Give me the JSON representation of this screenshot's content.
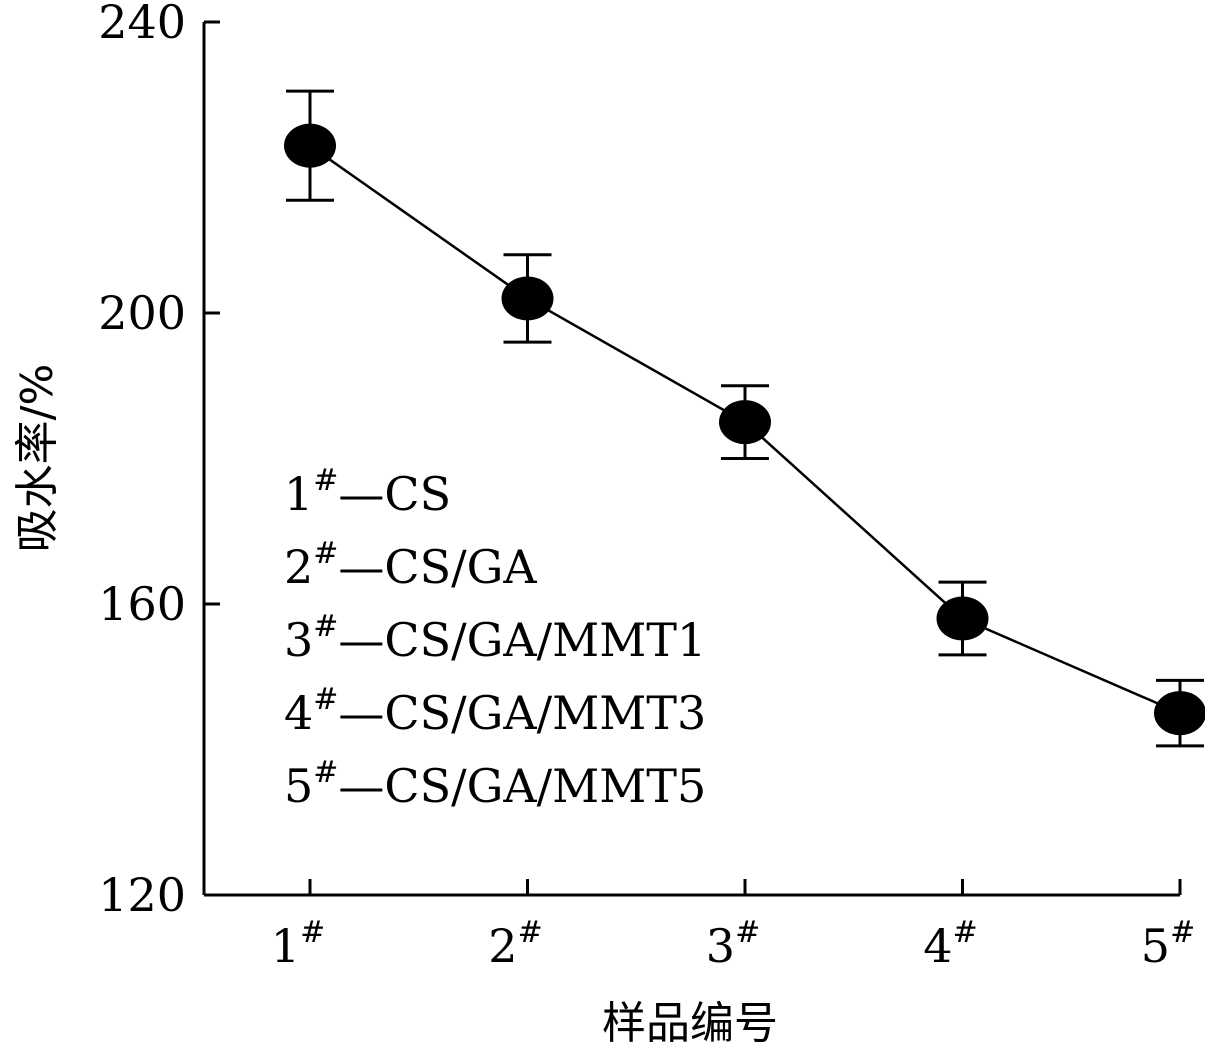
{
  "chart_data": {
    "type": "line",
    "xlabel": "样品编号",
    "ylabel": "吸水率/%",
    "ylim": [
      120,
      240
    ],
    "yticks": [
      120,
      160,
      200,
      240
    ],
    "categories": [
      {
        "num": "1",
        "sup": "#"
      },
      {
        "num": "2",
        "sup": "#"
      },
      {
        "num": "3",
        "sup": "#"
      },
      {
        "num": "4",
        "sup": "#"
      },
      {
        "num": "5",
        "sup": "#"
      }
    ],
    "series": [
      {
        "values": [
          223,
          202,
          185,
          158,
          145
        ],
        "errors": [
          7.5,
          6,
          5,
          5,
          4.5
        ],
        "color": "#000000",
        "marker": "filled-ellipse"
      }
    ],
    "legend": [
      {
        "num": "1",
        "sup": "#",
        "sep": "—",
        "text": "CS"
      },
      {
        "num": "2",
        "sup": "#",
        "sep": "—",
        "text": "CS/GA"
      },
      {
        "num": "3",
        "sup": "#",
        "sep": "—",
        "text": "CS/GA/MMT1"
      },
      {
        "num": "4",
        "sup": "#",
        "sep": "—",
        "text": "CS/GA/MMT3"
      },
      {
        "num": "5",
        "sup": "#",
        "sep": "—",
        "text": "CS/GA/MMT5"
      }
    ],
    "grid": false,
    "legend_placement": "inside-left"
  }
}
